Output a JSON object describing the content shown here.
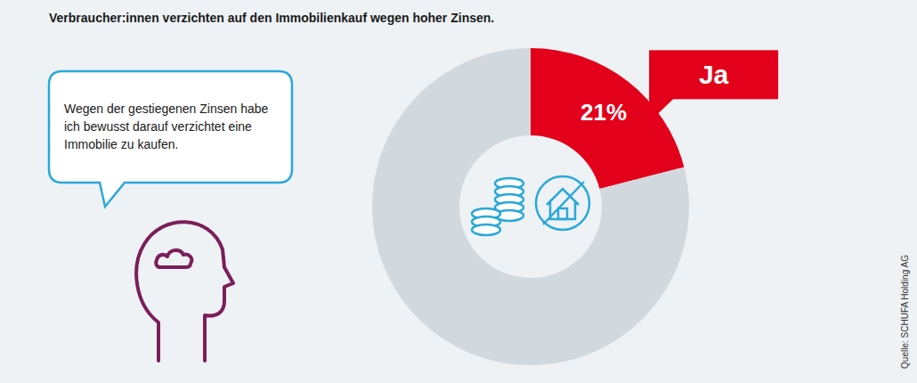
{
  "chart_data": {
    "type": "pie",
    "title": "Verbraucher:innen verzichten auf den Immobilienkauf wegen hoher Zinsen.",
    "categories": [
      "Ja",
      null
    ],
    "values": [
      21,
      79
    ],
    "colors": [
      "#e2001a",
      "#d2d9de"
    ],
    "value_labels": [
      "21%",
      null
    ],
    "data_labels": true,
    "annotation": "Wegen der gestiegenen Zinsen habe ich bewusst darauf verzichtet eine Immobilie zu kaufen.",
    "source": "Quelle: SCHUFA Holding AG"
  }
}
